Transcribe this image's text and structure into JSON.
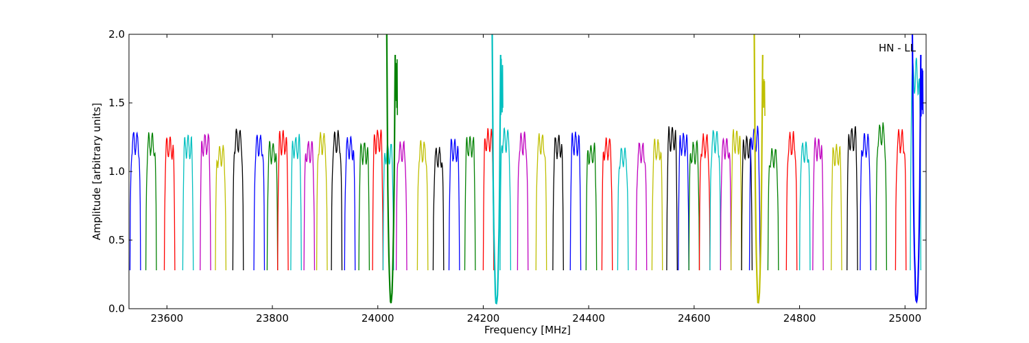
{
  "chart_data": {
    "type": "line",
    "xlabel": "Frequency [MHz]",
    "ylabel": "Amplitude [arbitrary units]",
    "annotation": "HN - LL",
    "xlim": [
      23528,
      25040
    ],
    "ylim": [
      0.0,
      2.0
    ],
    "xticks": [
      23600,
      23800,
      24000,
      24200,
      24400,
      24600,
      24800,
      25000
    ],
    "yticks": [
      0.0,
      0.5,
      1.0,
      1.5,
      2.0
    ],
    "ytick_labels": [
      "0.0",
      "0.5",
      "1.0",
      "1.5",
      "2.0"
    ],
    "grid": false,
    "channel_width_mhz": 20,
    "colors": {
      "blue": "#0000ff",
      "green": "#008000",
      "red": "#ff0000",
      "cyan": "#00bfbf",
      "magenta": "#bf00bf",
      "olive": "#bfbf00",
      "black": "#000000"
    },
    "color_cycle": [
      "blue",
      "green",
      "red",
      "cyan",
      "magenta",
      "olive",
      "black"
    ],
    "channel_starts": [
      23530,
      23560,
      23595,
      23630,
      23663,
      23692,
      23725,
      23765,
      23790,
      23810,
      23835,
      23860,
      23884,
      23912,
      23937,
      23964,
      23990,
      24010,
      24035,
      24075,
      24105,
      24135,
      24165,
      24200,
      24232,
      24265,
      24300,
      24332,
      24365,
      24395,
      24425,
      24455,
      24490,
      24520,
      24548,
      24570,
      24590,
      24610,
      24630,
      24650,
      24670,
      24690,
      24705,
      24740,
      24775,
      24800,
      24825,
      24860,
      24890,
      24915,
      24945,
      24982,
      25010
    ],
    "channel_peaks": [
      1.29,
      1.28,
      1.25,
      1.26,
      1.28,
      1.18,
      1.31,
      1.27,
      1.21,
      1.29,
      1.26,
      1.22,
      1.28,
      1.29,
      1.25,
      1.21,
      1.3,
      1.21,
      1.21,
      1.22,
      1.17,
      1.23,
      1.26,
      1.31,
      1.31,
      1.28,
      1.27,
      1.26,
      1.28,
      1.2,
      1.24,
      1.18,
      1.21,
      1.23,
      1.32,
      1.28,
      1.21,
      1.27,
      1.3,
      1.25,
      1.3,
      1.25,
      1.32,
      1.17,
      1.28,
      1.21,
      1.24,
      1.19,
      1.32,
      1.27,
      1.35,
      1.3,
      1.82
    ],
    "channel_minimum": 0.28,
    "deep_dips": [
      {
        "x": 24025,
        "min": 0.04,
        "spike_top": 2.0,
        "color": "green"
      },
      {
        "x": 24225,
        "min": 0.04,
        "spike_top": 2.0,
        "color": "cyan"
      },
      {
        "x": 24722,
        "min": 0.04,
        "spike_top": 2.0,
        "color": "olive"
      },
      {
        "x": 25022,
        "min": 0.04,
        "spike_top": 2.0,
        "color": "blue"
      }
    ]
  }
}
